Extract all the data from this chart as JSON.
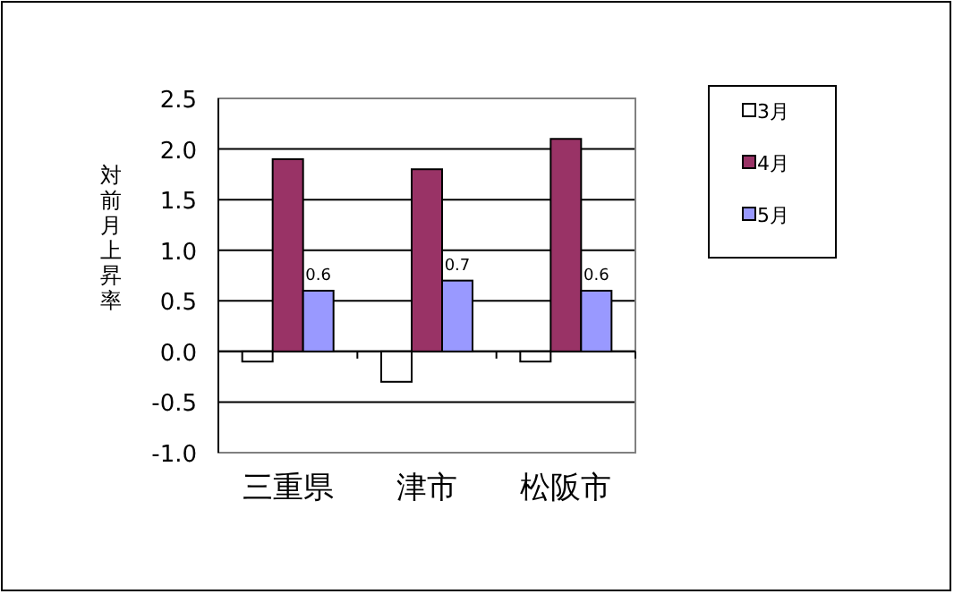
{
  "chart_data": {
    "type": "bar",
    "ylabel": "対前月上昇率",
    "categories": [
      "三重県",
      "津市",
      "松阪市"
    ],
    "series": [
      {
        "name": "3月",
        "color": "#ffffff",
        "values": [
          -0.1,
          -0.3,
          -0.1
        ]
      },
      {
        "name": "4月",
        "color": "#993366",
        "values": [
          1.9,
          1.8,
          2.1
        ]
      },
      {
        "name": "5月",
        "color": "#9999ff",
        "values": [
          0.6,
          0.7,
          0.6
        ],
        "value_labels": [
          "0.6",
          "0.7",
          "0.6"
        ]
      }
    ],
    "ylim": [
      -1.0,
      2.5
    ],
    "yticks": [
      {
        "value": -1.0,
        "label": "-1.0"
      },
      {
        "value": -0.5,
        "label": "-0.5"
      },
      {
        "value": 0,
        "label": "0.0"
      },
      {
        "value": 0.5,
        "label": "0.5"
      },
      {
        "value": 1.0,
        "label": "1.0"
      },
      {
        "value": 1.5,
        "label": "1.5"
      },
      {
        "value": 2.0,
        "label": "2.0"
      },
      {
        "value": 2.5,
        "label": "2.5"
      }
    ],
    "grid": "y",
    "legend": "right"
  }
}
